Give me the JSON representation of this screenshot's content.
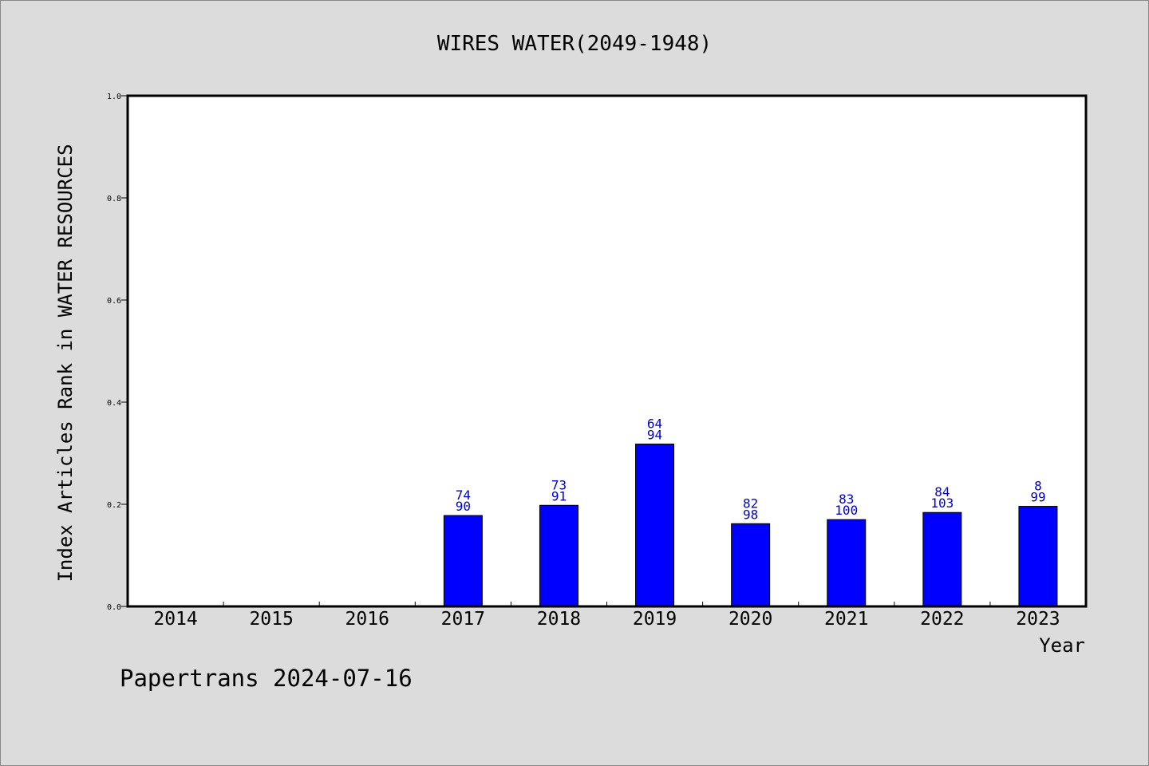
{
  "chart_data": {
    "type": "bar",
    "title": "WIRES WATER(2049-1948)",
    "xlabel": "Year",
    "ylabel": "Index Articles Rank in WATER RESOURCES",
    "ylim": [
      0,
      1.0
    ],
    "yticks": [
      "0.0",
      "0.2",
      "0.4",
      "0.6",
      "0.8",
      "1.0"
    ],
    "categories": [
      "2014",
      "2015",
      "2016",
      "2017",
      "2018",
      "2019",
      "2020",
      "2021",
      "2022",
      "2023"
    ],
    "values": [
      0,
      0,
      0,
      0.178,
      0.198,
      0.318,
      0.162,
      0.17,
      0.184,
      0.196
    ],
    "rank_labels": [
      "",
      "",
      "",
      "74",
      "73",
      "64",
      "82",
      "83",
      "84",
      "8"
    ],
    "count_labels": [
      "",
      "",
      "",
      "90",
      "91",
      "94",
      "98",
      "100",
      "103",
      "99"
    ],
    "grid": false,
    "colors": {
      "bar": "#0000ff",
      "label": "#0000cc",
      "plot_background": "#ffffff",
      "page_background": "#dcdcdc"
    }
  },
  "footer": "Papertrans 2024-07-16"
}
